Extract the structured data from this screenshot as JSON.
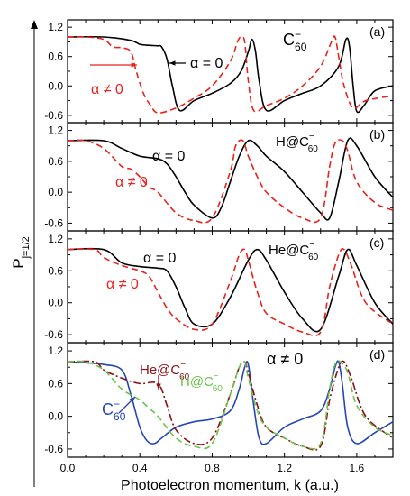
{
  "figure": {
    "ylabel": "P",
    "ylabel_sub": "j=1/2",
    "xlabel": "Photoelectron momentum, k (a.u.)"
  },
  "chart_data": [
    {
      "type": "line",
      "panel": "(a)",
      "species_label": {
        "base": "C",
        "sup": "−",
        "sub": "60"
      },
      "xlim": [
        0.0,
        1.8
      ],
      "ylim": [
        -0.75,
        1.35
      ],
      "yticks": [
        "1.2",
        "0.6",
        "0.0",
        "-0.6"
      ],
      "annotations": [
        "α = 0",
        "α ≠ 0"
      ],
      "series": [
        {
          "label_ref": "α = 0",
          "color": "#000000",
          "dash": "solid",
          "x": [
            0.0,
            0.2,
            0.35,
            0.4,
            0.45,
            0.5,
            0.52,
            0.55,
            0.58,
            0.62,
            0.7,
            0.8,
            0.9,
            0.96,
            1.0,
            1.02,
            1.04,
            1.06,
            1.1,
            1.2,
            1.3,
            1.4,
            1.5,
            1.54,
            1.56,
            1.58,
            1.6,
            1.64,
            1.7,
            1.8
          ],
          "y": [
            1.0,
            1.0,
            0.93,
            0.85,
            0.83,
            0.82,
            0.8,
            0.55,
            0.0,
            -0.5,
            -0.3,
            -0.15,
            0.05,
            0.3,
            0.7,
            0.95,
            0.7,
            0.1,
            -0.5,
            -0.3,
            -0.15,
            0.0,
            0.4,
            0.95,
            0.8,
            0.0,
            -0.52,
            -0.4,
            -0.1,
            0.0
          ]
        },
        {
          "label_ref": "α ≠ 0",
          "color": "#e8231d",
          "dash": "dashed",
          "x": [
            0.0,
            0.1,
            0.2,
            0.25,
            0.3,
            0.35,
            0.38,
            0.42,
            0.46,
            0.5,
            0.6,
            0.7,
            0.8,
            0.9,
            0.94,
            0.96,
            0.98,
            1.0,
            1.03,
            1.1,
            1.2,
            1.3,
            1.4,
            1.46,
            1.48,
            1.5,
            1.53,
            1.58,
            1.65,
            1.8
          ],
          "y": [
            1.0,
            1.0,
            0.95,
            0.8,
            0.78,
            0.7,
            0.3,
            -0.15,
            -0.4,
            -0.55,
            -0.45,
            -0.25,
            0.0,
            0.5,
            0.9,
            1.0,
            0.9,
            0.1,
            -0.5,
            -0.4,
            -0.25,
            0.0,
            0.4,
            0.9,
            1.0,
            0.6,
            0.0,
            -0.45,
            -0.3,
            -0.2
          ]
        }
      ]
    },
    {
      "type": "line",
      "panel": "(b)",
      "species_label": {
        "base": "H@C",
        "sup": "−",
        "sub": "60"
      },
      "xlim": [
        0.0,
        1.8
      ],
      "ylim": [
        -0.75,
        1.35
      ],
      "yticks": [
        "1.2",
        "0.6",
        "0.0",
        "-0.6"
      ],
      "annotations": [
        "α = 0",
        "α ≠ 0"
      ],
      "series": [
        {
          "label_ref": "α = 0",
          "color": "#000000",
          "dash": "solid",
          "x": [
            0.0,
            0.2,
            0.3,
            0.4,
            0.5,
            0.55,
            0.6,
            0.65,
            0.7,
            0.8,
            0.85,
            0.9,
            0.95,
            1.0,
            1.05,
            1.1,
            1.2,
            1.3,
            1.4,
            1.45,
            1.5,
            1.55,
            1.6,
            1.7,
            1.8
          ],
          "y": [
            1.0,
            1.0,
            0.85,
            0.7,
            0.65,
            0.55,
            0.3,
            0.0,
            -0.25,
            -0.5,
            -0.3,
            0.2,
            0.7,
            1.0,
            0.9,
            0.7,
            0.4,
            0.0,
            -0.4,
            -0.5,
            0.2,
            1.0,
            0.9,
            0.3,
            -0.1
          ]
        },
        {
          "label_ref": "α ≠ 0",
          "color": "#e8231d",
          "dash": "dashed",
          "x": [
            0.0,
            0.1,
            0.2,
            0.3,
            0.35,
            0.4,
            0.45,
            0.5,
            0.6,
            0.7,
            0.8,
            0.9,
            0.93,
            0.97,
            1.0,
            1.05,
            1.1,
            1.2,
            1.3,
            1.4,
            1.45,
            1.48,
            1.52,
            1.55,
            1.6,
            1.7,
            1.8
          ],
          "y": [
            1.0,
            1.0,
            0.85,
            0.5,
            0.45,
            0.3,
            0.1,
            0.0,
            -0.4,
            -0.55,
            -0.5,
            0.4,
            0.9,
            1.0,
            0.7,
            0.3,
            0.0,
            -0.3,
            -0.5,
            -0.5,
            0.5,
            0.95,
            1.0,
            0.8,
            0.2,
            -0.2,
            -0.35
          ]
        }
      ]
    },
    {
      "type": "line",
      "panel": "(c)",
      "species_label": {
        "base": "He@C",
        "sup": "−",
        "sub": "60"
      },
      "xlim": [
        0.0,
        1.8
      ],
      "ylim": [
        -0.75,
        1.35
      ],
      "yticks": [
        "1.2",
        "0.6",
        "0.0",
        "-0.6"
      ],
      "annotations": [
        "α = 0",
        "α ≠ 0"
      ],
      "series": [
        {
          "label_ref": "α = 0",
          "color": "#000000",
          "dash": "solid",
          "x": [
            0.0,
            0.2,
            0.3,
            0.4,
            0.5,
            0.55,
            0.6,
            0.65,
            0.7,
            0.8,
            0.9,
            1.0,
            1.05,
            1.1,
            1.2,
            1.3,
            1.4,
            1.5,
            1.55,
            1.6,
            1.7,
            1.8
          ],
          "y": [
            1.0,
            1.0,
            0.75,
            0.68,
            0.65,
            0.6,
            0.3,
            -0.1,
            -0.4,
            -0.4,
            0.1,
            0.8,
            1.0,
            0.8,
            0.2,
            -0.3,
            -0.5,
            0.5,
            1.0,
            0.7,
            0.0,
            -0.4
          ]
        },
        {
          "label_ref": "α ≠ 0",
          "color": "#e8231d",
          "dash": "dashed",
          "x": [
            0.0,
            0.15,
            0.2,
            0.3,
            0.4,
            0.45,
            0.5,
            0.55,
            0.6,
            0.7,
            0.8,
            0.9,
            0.95,
            0.98,
            1.0,
            1.05,
            1.1,
            1.2,
            1.3,
            1.4,
            1.45,
            1.5,
            1.53,
            1.57,
            1.65,
            1.8
          ],
          "y": [
            1.0,
            1.0,
            0.85,
            0.7,
            0.6,
            0.5,
            0.2,
            -0.1,
            -0.3,
            -0.5,
            -0.4,
            0.4,
            0.9,
            1.0,
            0.8,
            0.2,
            -0.2,
            -0.4,
            -0.55,
            -0.55,
            0.3,
            0.9,
            1.0,
            0.7,
            0.0,
            -0.4
          ]
        }
      ]
    },
    {
      "type": "line",
      "panel": "(d)",
      "title": "α ≠ 0",
      "xlim": [
        0.0,
        1.8
      ],
      "ylim": [
        -0.75,
        1.35
      ],
      "yticks": [
        "1.2",
        "0.6",
        "0.0",
        "-0.6"
      ],
      "xticks": [
        "0.0",
        "0.4",
        "0.8",
        "1.2",
        "1.6"
      ],
      "series": [
        {
          "label": {
            "base": "C",
            "sup": "−",
            "sub": "60"
          },
          "color": "#2446b4",
          "dash": "solid",
          "x": [
            0.0,
            0.1,
            0.2,
            0.3,
            0.35,
            0.4,
            0.44,
            0.48,
            0.52,
            0.6,
            0.7,
            0.8,
            0.9,
            0.95,
            0.98,
            1.0,
            1.03,
            1.06,
            1.1,
            1.2,
            1.3,
            1.4,
            1.45,
            1.48,
            1.5,
            1.52,
            1.55,
            1.6,
            1.7,
            1.8
          ],
          "y": [
            1.0,
            0.98,
            0.95,
            0.85,
            0.4,
            -0.2,
            -0.45,
            -0.5,
            -0.4,
            -0.2,
            -0.1,
            -0.05,
            0.1,
            0.5,
            0.9,
            0.95,
            0.2,
            -0.4,
            -0.5,
            -0.2,
            -0.05,
            0.1,
            0.5,
            0.9,
            1.0,
            0.6,
            -0.2,
            -0.5,
            -0.3,
            -0.1
          ]
        },
        {
          "label": {
            "base": "He@C",
            "sup": "−",
            "sub": "60"
          },
          "color": "#8b0f14",
          "dash": "dashdot",
          "x": [
            0.0,
            0.15,
            0.2,
            0.3,
            0.4,
            0.5,
            0.55,
            0.6,
            0.7,
            0.8,
            0.9,
            0.95,
            0.98,
            1.0,
            1.05,
            1.1,
            1.2,
            1.3,
            1.4,
            1.45,
            1.5,
            1.53,
            1.57,
            1.65,
            1.8
          ],
          "y": [
            1.0,
            1.0,
            0.85,
            0.7,
            0.6,
            0.6,
            0.2,
            -0.25,
            -0.5,
            -0.4,
            0.4,
            0.9,
            1.0,
            0.8,
            0.2,
            -0.2,
            -0.4,
            -0.55,
            -0.55,
            0.3,
            0.9,
            1.0,
            0.7,
            0.0,
            -0.4
          ]
        },
        {
          "label": {
            "base": "H@C",
            "sup": "−",
            "sub": "60"
          },
          "color": "#6cc24a",
          "dash": "dashed",
          "x": [
            0.0,
            0.1,
            0.2,
            0.3,
            0.4,
            0.45,
            0.5,
            0.6,
            0.7,
            0.8,
            0.9,
            0.95,
            0.98,
            1.0,
            1.05,
            1.1,
            1.2,
            1.3,
            1.4,
            1.45,
            1.48,
            1.51,
            1.55,
            1.6,
            1.7,
            1.8
          ],
          "y": [
            1.0,
            1.0,
            0.85,
            0.5,
            0.3,
            0.15,
            0.0,
            -0.4,
            -0.55,
            -0.5,
            0.4,
            0.9,
            1.0,
            0.7,
            0.1,
            -0.2,
            -0.4,
            -0.55,
            -0.5,
            0.5,
            0.95,
            1.0,
            0.8,
            0.2,
            -0.2,
            -0.35
          ]
        }
      ]
    }
  ]
}
